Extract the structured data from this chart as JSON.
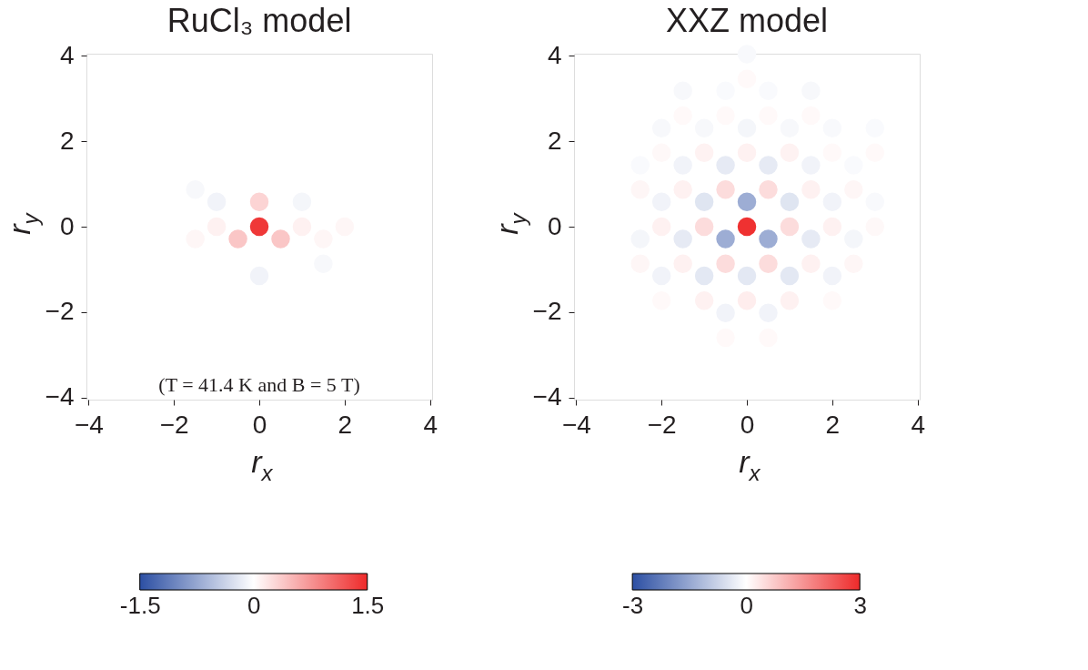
{
  "chart_data": [
    {
      "type": "scatter",
      "title": "RuCl₃ model",
      "xlabel": "r$_{x}$",
      "ylabel": "r$_{y}$",
      "xlim": [
        -4.05,
        4.05
      ],
      "ylim": [
        -4.05,
        4.05
      ],
      "xticks": [
        -4,
        -2,
        0,
        2,
        4
      ],
      "yticks": [
        -4,
        -2,
        0,
        2,
        4
      ],
      "clim": [
        -1.5,
        1.5
      ],
      "cticks": [
        -1.5,
        0,
        1.5
      ],
      "marker": "circle",
      "grid": false,
      "annotations": [
        "(T = 41.4 K and B = 5 T)"
      ],
      "series": [
        {
          "x": [
            -1.5,
            -1,
            0,
            1,
            -1,
            0,
            1,
            2,
            -1.5,
            -0.5,
            0.5,
            1.5,
            1.5,
            0
          ],
          "values": [
            0.87,
            0.58,
            0.58,
            0.58,
            0,
            0,
            0,
            0,
            -0.29,
            -0.29,
            -0.29,
            -0.29,
            -0.87,
            -1.15
          ],
          "cvalues": [
            -0.06,
            -0.1,
            0.3,
            -0.08,
            0.1,
            1.4,
            0.1,
            0.06,
            0.06,
            0.4,
            0.4,
            0.06,
            -0.06,
            -0.1
          ]
        }
      ]
    },
    {
      "type": "scatter",
      "title": "XXZ model",
      "xlabel": "r$_{x}$",
      "ylabel": "r$_{y}$",
      "xlim": [
        -4.05,
        4.05
      ],
      "ylim": [
        -4.05,
        4.05
      ],
      "xticks": [
        -4,
        -2,
        0,
        2,
        4
      ],
      "yticks": [
        -4,
        -2,
        0,
        2,
        4
      ],
      "clim": [
        -3,
        3
      ],
      "cticks": [
        -3,
        0,
        3
      ],
      "marker": "circle",
      "grid": false,
      "series": [
        {
          "x": [
            0,
            0,
            -1.5,
            -0.5,
            0.5,
            1.5,
            -1.5,
            -0.5,
            0.5,
            1.5,
            -2,
            -1,
            0,
            1,
            2,
            3,
            -2,
            -1,
            0,
            1,
            2,
            3,
            -2.5,
            -1.5,
            -0.5,
            0.5,
            1.5,
            2.5,
            -2.5,
            -1.5,
            -0.5,
            0.5,
            1.5,
            2.5,
            -2,
            -1,
            0,
            1,
            2,
            3,
            -2,
            -1,
            0,
            1,
            2,
            3,
            -2.5,
            -1.5,
            -0.5,
            0.5,
            1.5,
            2.5,
            -2.5,
            -1.5,
            -0.5,
            0.5,
            1.5,
            2.5,
            -2,
            -1,
            0,
            1,
            2,
            -2,
            -1,
            0,
            1,
            2,
            -0.5,
            0.5,
            -0.5,
            0.5
          ],
          "values": [
            4.04,
            3.46,
            3.18,
            3.18,
            3.18,
            3.18,
            2.6,
            2.6,
            2.6,
            2.6,
            2.31,
            2.31,
            2.31,
            2.31,
            2.31,
            2.31,
            1.73,
            1.73,
            1.73,
            1.73,
            1.73,
            1.73,
            1.44,
            1.44,
            1.44,
            1.44,
            1.44,
            1.44,
            0.87,
            0.87,
            0.87,
            0.87,
            0.87,
            0.87,
            0.58,
            0.58,
            0.58,
            0.58,
            0.58,
            0.58,
            0,
            0,
            0,
            0,
            0,
            0,
            -0.29,
            -0.29,
            -0.29,
            -0.29,
            -0.29,
            -0.29,
            -0.87,
            -0.87,
            -0.87,
            -0.87,
            -0.87,
            -0.87,
            -1.15,
            -1.15,
            -1.15,
            -1.15,
            -1.15,
            -1.73,
            -1.73,
            -1.73,
            -1.73,
            -1.73,
            -2.02,
            -2.02,
            -2.6,
            -2.6
          ],
          "cvalues": [
            -0.1,
            0.08,
            -0.12,
            -0.08,
            -0.08,
            -0.12,
            0.08,
            0.08,
            0.08,
            0.08,
            -0.12,
            -0.12,
            -0.15,
            -0.12,
            -0.1,
            -0.08,
            0.1,
            0.18,
            0.2,
            0.18,
            0.08,
            0.08,
            -0.08,
            -0.2,
            -0.35,
            -0.35,
            -0.2,
            -0.08,
            0.12,
            0.2,
            0.5,
            0.5,
            0.2,
            0.12,
            -0.2,
            -0.45,
            -1.4,
            -0.45,
            -0.2,
            -0.1,
            0.2,
            0.5,
            2.9,
            0.5,
            0.2,
            0.1,
            -0.15,
            -0.35,
            -1.4,
            -1.4,
            -0.35,
            -0.15,
            0.12,
            0.2,
            0.5,
            0.5,
            0.2,
            0.12,
            -0.2,
            -0.4,
            -0.4,
            -0.4,
            -0.2,
            0.08,
            0.2,
            0.25,
            0.2,
            0.08,
            -0.2,
            -0.2,
            0.08,
            0.08
          ]
        }
      ]
    }
  ]
}
